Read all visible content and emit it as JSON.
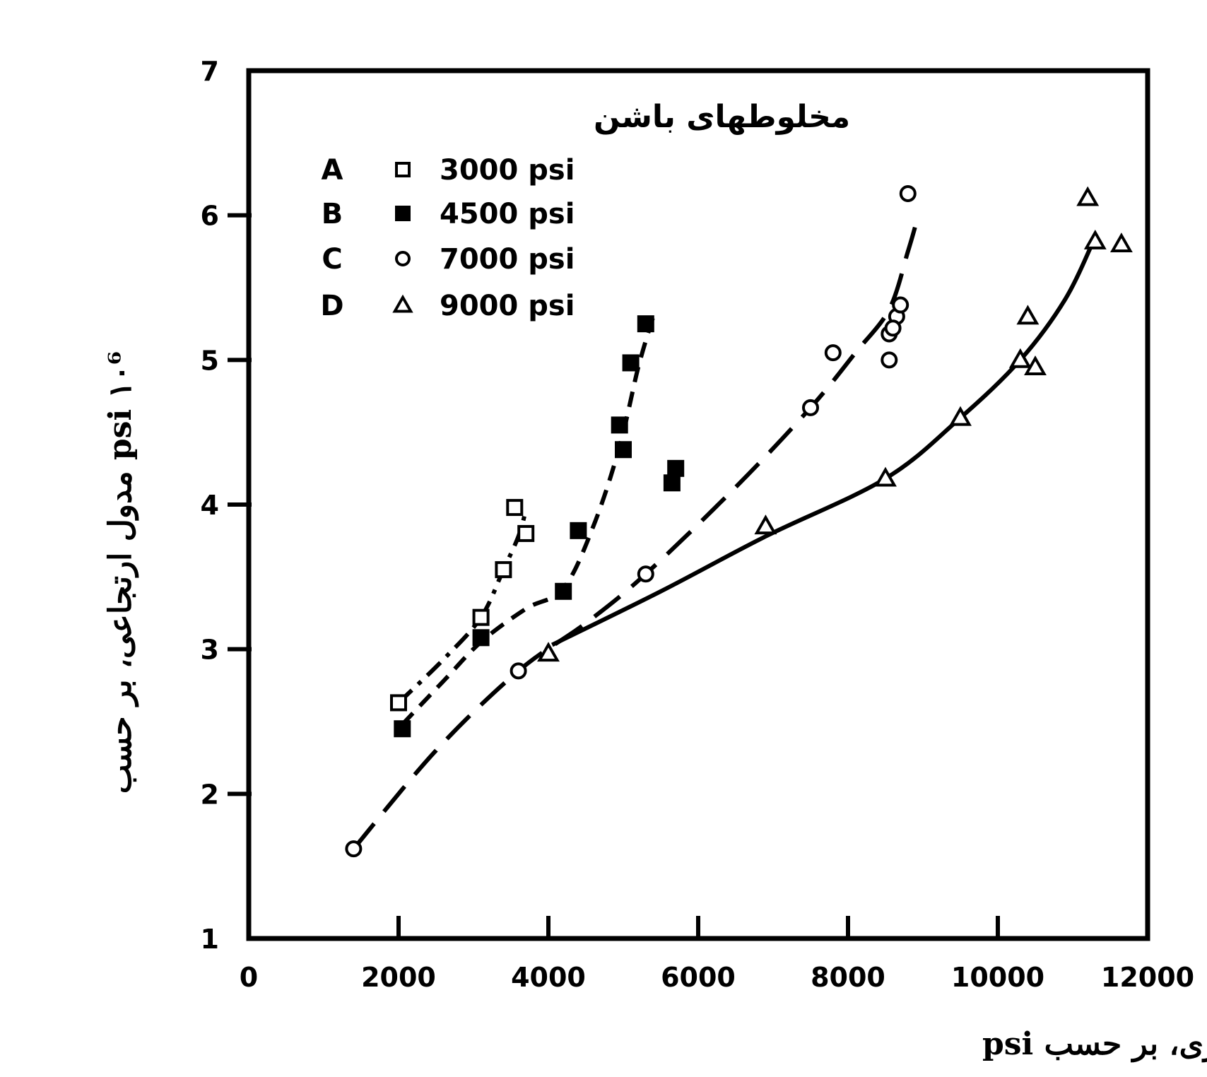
{
  "chart_data": {
    "type": "scatter",
    "xlabel": "مقاومت فشاری، بر حسب psi",
    "ylabel": "۱۰⁶ psi مدول ارتجاعی، بر حسب",
    "xlim": [
      0,
      12000
    ],
    "ylim": [
      1,
      7
    ],
    "x_ticks": [
      0,
      2000,
      4000,
      6000,
      8000,
      10000,
      12000
    ],
    "x_tick_labels": [
      "0",
      "2000",
      "4000",
      "6000",
      "8000",
      "10000",
      "12000"
    ],
    "y_ticks": [
      1,
      2,
      3,
      4,
      5,
      6,
      7
    ],
    "y_tick_labels": [
      "1",
      "2",
      "3",
      "4",
      "5",
      "6",
      "7"
    ],
    "grid": false,
    "legend_position": "top-left",
    "legend_title": "مخلوطهای باشن",
    "series": [
      {
        "name": "3000 psi",
        "letter": "A",
        "marker": "square-open",
        "line_style": "dash-dot",
        "points": [
          [
            2000,
            2.63
          ],
          [
            3100,
            3.22
          ],
          [
            3400,
            3.55
          ],
          [
            3550,
            3.98
          ],
          [
            3700,
            3.8
          ]
        ],
        "curve": [
          [
            2000,
            2.63
          ],
          [
            2600,
            2.93
          ],
          [
            3100,
            3.22
          ],
          [
            3400,
            3.55
          ],
          [
            3600,
            3.78
          ],
          [
            3700,
            3.96
          ]
        ]
      },
      {
        "name": "4500 psi",
        "letter": "B",
        "marker": "square-filled",
        "line_style": "dashed",
        "points": [
          [
            2050,
            2.45
          ],
          [
            3100,
            3.08
          ],
          [
            4200,
            3.4
          ],
          [
            4400,
            3.82
          ],
          [
            4950,
            4.55
          ],
          [
            5000,
            4.38
          ],
          [
            5100,
            4.98
          ],
          [
            5300,
            5.25
          ],
          [
            5650,
            4.15
          ],
          [
            5700,
            4.25
          ]
        ],
        "curve": [
          [
            2050,
            2.48
          ],
          [
            2600,
            2.78
          ],
          [
            3100,
            3.05
          ],
          [
            3700,
            3.28
          ],
          [
            4200,
            3.42
          ],
          [
            4600,
            3.85
          ],
          [
            4950,
            4.4
          ],
          [
            5200,
            4.95
          ],
          [
            5400,
            5.3
          ]
        ]
      },
      {
        "name": "7000 psi",
        "letter": "C",
        "marker": "circle-open",
        "line_style": "long-dash",
        "points": [
          [
            1400,
            1.62
          ],
          [
            3600,
            2.85
          ],
          [
            5300,
            3.52
          ],
          [
            7500,
            4.67
          ],
          [
            7800,
            5.05
          ],
          [
            8550,
            5.0
          ],
          [
            8550,
            5.18
          ],
          [
            8650,
            5.3
          ],
          [
            8700,
            5.38
          ],
          [
            8600,
            5.22
          ],
          [
            8800,
            6.15
          ]
        ],
        "curve": [
          [
            1400,
            1.62
          ],
          [
            2500,
            2.3
          ],
          [
            3600,
            2.85
          ],
          [
            4500,
            3.18
          ],
          [
            5300,
            3.52
          ],
          [
            6500,
            4.12
          ],
          [
            7500,
            4.67
          ],
          [
            8100,
            5.05
          ],
          [
            8550,
            5.35
          ],
          [
            8800,
            5.75
          ],
          [
            8950,
            6.02
          ]
        ]
      },
      {
        "name": "9000 psi",
        "letter": "D",
        "marker": "triangle-open",
        "line_style": "solid",
        "points": [
          [
            4000,
            2.97
          ],
          [
            6900,
            3.85
          ],
          [
            8500,
            4.18
          ],
          [
            9500,
            4.6
          ],
          [
            10300,
            5.0
          ],
          [
            10500,
            4.95
          ],
          [
            10400,
            5.3
          ],
          [
            11200,
            6.12
          ],
          [
            11300,
            5.82
          ],
          [
            11650,
            5.8
          ]
        ],
        "curve": [
          [
            4050,
            3.03
          ],
          [
            5500,
            3.4
          ],
          [
            6900,
            3.78
          ],
          [
            8500,
            4.18
          ],
          [
            9500,
            4.6
          ],
          [
            10300,
            5.0
          ],
          [
            10900,
            5.42
          ],
          [
            11300,
            5.85
          ]
        ]
      }
    ]
  }
}
